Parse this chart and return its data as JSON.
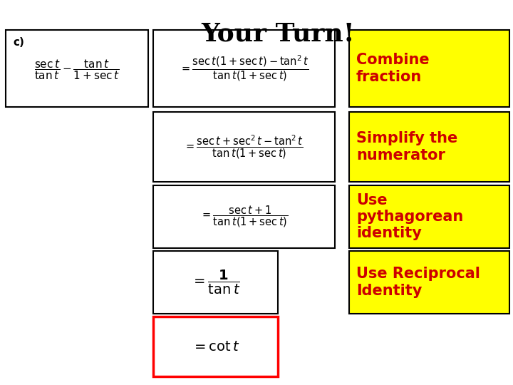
{
  "title": "Your Turn!",
  "bg_color": "#ffffff",
  "title_color": "#000000",
  "label1": "Combine\nfraction",
  "label2": "Simplify the\nnumerator",
  "label3": "Use\npythagorean\nidentity",
  "label4": "Use Reciprocal\nIdentity",
  "label_bg": "#ffff00",
  "label_color": "#cc0000",
  "label_border": "#000000"
}
